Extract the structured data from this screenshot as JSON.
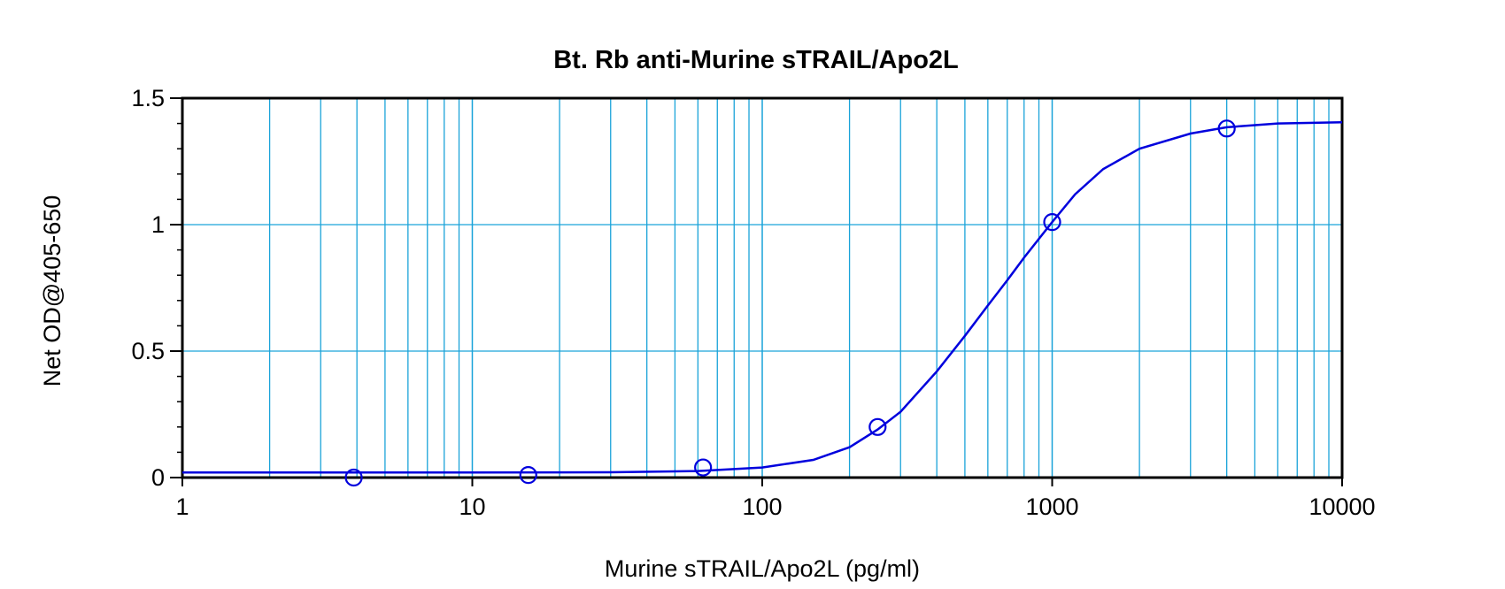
{
  "chart_data": {
    "type": "scatter",
    "title": "Bt. Rb anti-Murine sTRAIL/Apo2L",
    "xlabel": "Murine sTRAIL/Apo2L (pg/ml)",
    "ylabel": "Net OD@405-650",
    "x_scale": "log",
    "xlim": [
      1,
      10000
    ],
    "ylim": [
      0,
      1.5
    ],
    "x_ticks": [
      "1",
      "10",
      "100",
      "1000",
      "10000"
    ],
    "y_ticks": [
      "0",
      "0.5",
      "1",
      "1.5"
    ],
    "grid": true,
    "colors": {
      "series": "#0000dd",
      "grid": "#1aa3d9",
      "frame": "#000000"
    },
    "series": [
      {
        "type": "scatter",
        "x": [
          3.9,
          15.6,
          62.5,
          250,
          1000,
          4000
        ],
        "y": [
          0.0,
          0.01,
          0.04,
          0.2,
          1.01,
          1.38
        ]
      },
      {
        "type": "line",
        "x": [
          1,
          10,
          30,
          60,
          100,
          150,
          200,
          250,
          300,
          400,
          500,
          600,
          700,
          800,
          1000,
          1200,
          1500,
          2000,
          3000,
          4000,
          6000,
          10000
        ],
        "y": [
          0.02,
          0.02,
          0.021,
          0.026,
          0.04,
          0.07,
          0.12,
          0.19,
          0.26,
          0.42,
          0.56,
          0.68,
          0.78,
          0.87,
          1.01,
          1.12,
          1.22,
          1.3,
          1.36,
          1.385,
          1.4,
          1.405
        ]
      }
    ]
  }
}
